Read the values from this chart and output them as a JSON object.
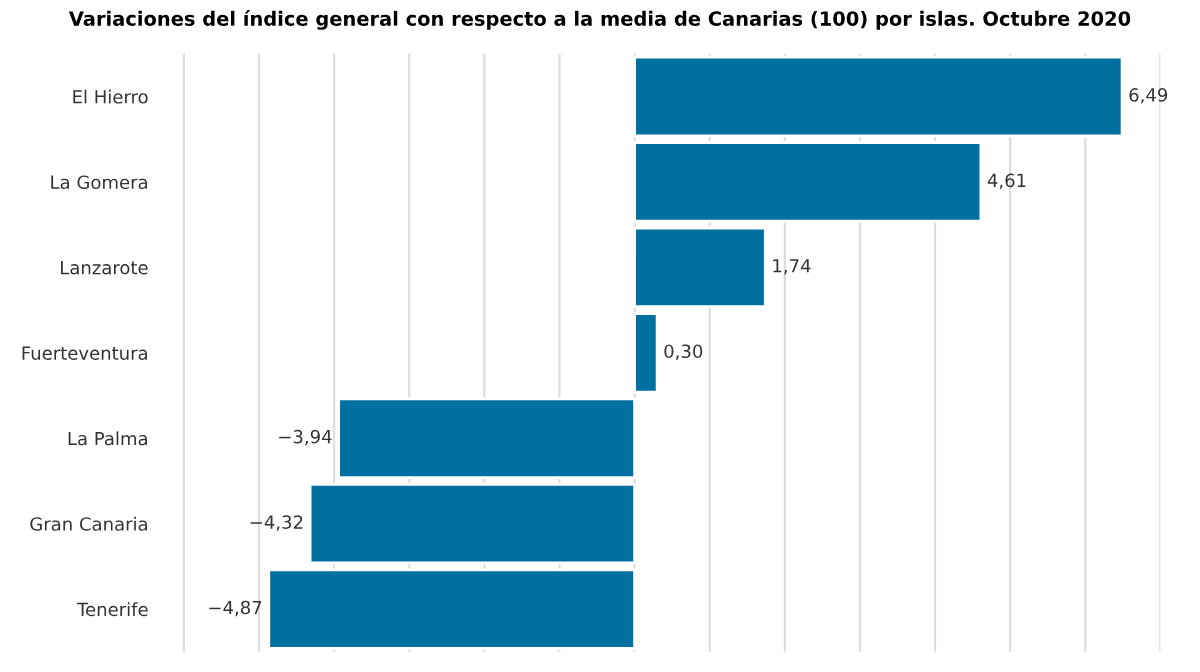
{
  "chart_data": {
    "type": "bar",
    "orientation": "horizontal",
    "title": "Variaciones del índice general con respecto a la media de Canarias (100) por islas. Octubre 2020",
    "categories": [
      "El Hierro",
      "La Gomera",
      "Lanzarote",
      "Fuerteventura",
      "La Palma",
      "Gran Canaria",
      "Tenerife"
    ],
    "values": [
      6.49,
      4.61,
      1.74,
      0.3,
      -3.94,
      -4.32,
      -4.87
    ],
    "value_labels": [
      "6,49",
      "4,61",
      "1,74",
      "0,30",
      "−3,94",
      "−4,32",
      "−4,87"
    ],
    "color": "#0070a0",
    "xlim": [
      -6.1,
      7
    ],
    "xticks": [
      {
        "value": -6,
        "label": null
      },
      {
        "value": -5,
        "label": null
      },
      {
        "value": -4,
        "label": null
      },
      {
        "value": -3,
        "label": null
      },
      {
        "value": -2,
        "label": null
      },
      {
        "value": -1,
        "label": null
      },
      {
        "value": 0,
        "label": null
      },
      {
        "value": 1,
        "label": null
      },
      {
        "value": 2,
        "label": null
      },
      {
        "value": 3,
        "label": null
      },
      {
        "value": 4,
        "label": null
      },
      {
        "value": 5,
        "label": null
      },
      {
        "value": 6,
        "label": null
      },
      {
        "value": 7,
        "label": null
      }
    ],
    "grid": "x",
    "legend": false
  }
}
